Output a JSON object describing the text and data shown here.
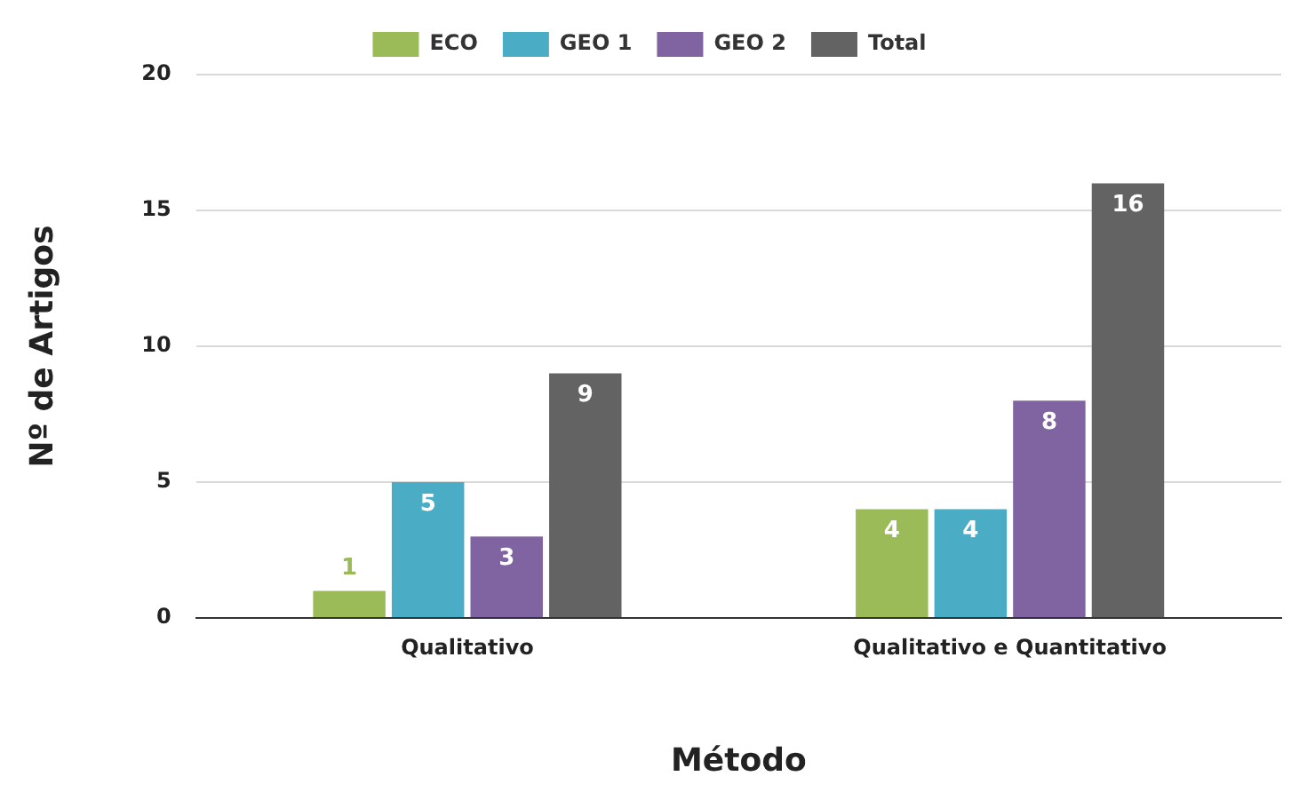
{
  "chart_data": {
    "type": "bar",
    "xlabel": "Método",
    "ylabel": "Nº de Artigos",
    "categories": [
      "Qualitativo",
      "Qualitativo e Quantitativo"
    ],
    "series": [
      {
        "name": "ECO",
        "color": "#9bbb59",
        "values": [
          1,
          4
        ]
      },
      {
        "name": "GEO 1",
        "color": "#4bacc6",
        "values": [
          5,
          4
        ]
      },
      {
        "name": "GEO 2",
        "color": "#8064a2",
        "values": [
          3,
          8
        ]
      },
      {
        "name": "Total",
        "color": "#636363",
        "values": [
          9,
          16
        ]
      }
    ],
    "ylim": [
      0,
      20
    ],
    "yticks": [
      0,
      5,
      10,
      15,
      20
    ],
    "grid": "y",
    "legend": "top",
    "data_labels": true
  }
}
